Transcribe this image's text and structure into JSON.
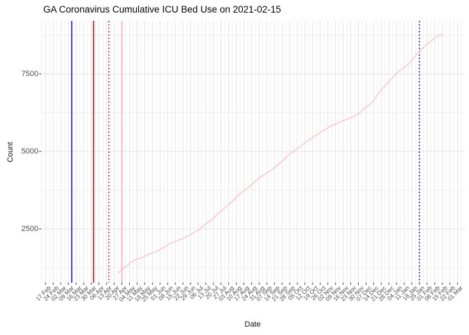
{
  "title": "GA Coronavirus Cumulative ICU Bed Use on 2021-02-15",
  "colors": {
    "background": "#ffffff",
    "grid_major": "#e3e3e3",
    "grid_minor": "#f0f0f0",
    "axis_text": "#4d4d4d",
    "tick_mark": "#333333",
    "series_line": "#ffb6c1",
    "vline_blue": "#2323cc",
    "vline_red": "#dd2424",
    "vline_pink": "#ffaec0",
    "vline_pink_light": "#ffd3dd"
  },
  "chart_data": {
    "type": "line",
    "title": "GA Coronavirus Cumulative ICU Bed Use on 2021-02-15",
    "xlabel": "Date",
    "ylabel": "Count",
    "legend": "none",
    "grid": "on",
    "xlim": [
      "2020-02-13",
      "2021-03-07"
    ],
    "ylim": [
      766,
      9212
    ],
    "y_ticks": [
      2500,
      5000,
      7500
    ],
    "y_minor_ticks": [
      1250,
      3750,
      6250,
      8750
    ],
    "x_ticks": [
      {
        "date": "2020-02-17",
        "label": "17 Feb"
      },
      {
        "date": "2020-02-24",
        "label": "24 Feb"
      },
      {
        "date": "2020-03-02",
        "label": "02 Mar"
      },
      {
        "date": "2020-03-09",
        "label": "09 Mar"
      },
      {
        "date": "2020-03-16",
        "label": "16 Mar"
      },
      {
        "date": "2020-03-23",
        "label": "23 Mar"
      },
      {
        "date": "2020-03-30",
        "label": "30 Mar"
      },
      {
        "date": "2020-04-06",
        "label": "06 Apr"
      },
      {
        "date": "2020-04-13",
        "label": "13 Apr"
      },
      {
        "date": "2020-04-20",
        "label": "20 Apr"
      },
      {
        "date": "2020-04-27",
        "label": "27 Apr"
      },
      {
        "date": "2020-05-04",
        "label": "04 May"
      },
      {
        "date": "2020-05-11",
        "label": "11 May"
      },
      {
        "date": "2020-05-18",
        "label": "18 May"
      },
      {
        "date": "2020-05-25",
        "label": "25 May"
      },
      {
        "date": "2020-06-01",
        "label": "01 Jun"
      },
      {
        "date": "2020-06-08",
        "label": "08 Jun"
      },
      {
        "date": "2020-06-15",
        "label": "15 Jun"
      },
      {
        "date": "2020-06-22",
        "label": "22 Jun"
      },
      {
        "date": "2020-06-29",
        "label": "29 Jun"
      },
      {
        "date": "2020-07-06",
        "label": "06 Jul"
      },
      {
        "date": "2020-07-13",
        "label": "13 Jul"
      },
      {
        "date": "2020-07-20",
        "label": "20 Jul"
      },
      {
        "date": "2020-07-27",
        "label": "27 Jul"
      },
      {
        "date": "2020-08-03",
        "label": "03 Aug"
      },
      {
        "date": "2020-08-10",
        "label": "10 Aug"
      },
      {
        "date": "2020-08-17",
        "label": "17 Aug"
      },
      {
        "date": "2020-08-24",
        "label": "24 Aug"
      },
      {
        "date": "2020-08-31",
        "label": "31 Aug"
      },
      {
        "date": "2020-09-07",
        "label": "07 Sep"
      },
      {
        "date": "2020-09-14",
        "label": "14 Sep"
      },
      {
        "date": "2020-09-21",
        "label": "21 Sep"
      },
      {
        "date": "2020-09-28",
        "label": "28 Sep"
      },
      {
        "date": "2020-10-05",
        "label": "05 Oct"
      },
      {
        "date": "2020-10-12",
        "label": "12 Oct"
      },
      {
        "date": "2020-10-19",
        "label": "19 Oct"
      },
      {
        "date": "2020-10-26",
        "label": "26 Oct"
      },
      {
        "date": "2020-11-02",
        "label": "02 Nov"
      },
      {
        "date": "2020-11-09",
        "label": "09 Nov"
      },
      {
        "date": "2020-11-16",
        "label": "16 Nov"
      },
      {
        "date": "2020-11-23",
        "label": "23 Nov"
      },
      {
        "date": "2020-11-30",
        "label": "30 Nov"
      },
      {
        "date": "2020-12-07",
        "label": "07 Dec"
      },
      {
        "date": "2020-12-14",
        "label": "14 Dec"
      },
      {
        "date": "2020-12-21",
        "label": "21 Dec"
      },
      {
        "date": "2020-12-28",
        "label": "28 Dec"
      },
      {
        "date": "2021-01-04",
        "label": "04 Jan"
      },
      {
        "date": "2021-01-11",
        "label": "11 Jan"
      },
      {
        "date": "2021-01-18",
        "label": "18 Jan"
      },
      {
        "date": "2021-01-25",
        "label": "25 Jan"
      },
      {
        "date": "2021-02-01",
        "label": "01 Feb"
      },
      {
        "date": "2021-02-08",
        "label": "08 Feb"
      },
      {
        "date": "2021-02-15",
        "label": "15 Feb"
      },
      {
        "date": "2021-02-22",
        "label": "22 Feb"
      },
      {
        "date": "2021-03-01",
        "label": "01 Mar"
      }
    ],
    "vlines": [
      {
        "date": "2020-03-12",
        "color": "#2323cc",
        "style": "solid"
      },
      {
        "date": "2020-04-01",
        "color": "#dd2424",
        "style": "solid"
      },
      {
        "date": "2020-04-15",
        "color": "#dd2424",
        "style": "dotted"
      },
      {
        "date": "2020-04-27",
        "color": "#ffaec0",
        "style": "solid"
      },
      {
        "date": "2020-05-11",
        "color": "#ffd3dd",
        "style": "dotted"
      },
      {
        "date": "2021-01-25",
        "color": "#2323cc",
        "style": "dotted"
      }
    ],
    "series": [
      {
        "name": "cumulative-icu-beds",
        "color": "#ffb6c1",
        "points": [
          [
            "2020-04-24",
            1080
          ],
          [
            "2020-04-27",
            1190
          ],
          [
            "2020-05-03",
            1350
          ],
          [
            "2020-05-09",
            1510
          ],
          [
            "2020-05-16",
            1580
          ],
          [
            "2020-05-22",
            1690
          ],
          [
            "2020-05-29",
            1780
          ],
          [
            "2020-06-04",
            1890
          ],
          [
            "2020-06-10",
            2030
          ],
          [
            "2020-06-17",
            2120
          ],
          [
            "2020-06-23",
            2210
          ],
          [
            "2020-06-29",
            2320
          ],
          [
            "2020-07-06",
            2460
          ],
          [
            "2020-07-12",
            2640
          ],
          [
            "2020-07-19",
            2820
          ],
          [
            "2020-07-25",
            3020
          ],
          [
            "2020-08-01",
            3220
          ],
          [
            "2020-08-07",
            3420
          ],
          [
            "2020-08-13",
            3630
          ],
          [
            "2020-08-20",
            3810
          ],
          [
            "2020-08-26",
            3990
          ],
          [
            "2020-09-01",
            4170
          ],
          [
            "2020-09-08",
            4320
          ],
          [
            "2020-09-14",
            4480
          ],
          [
            "2020-09-21",
            4680
          ],
          [
            "2020-09-27",
            4890
          ],
          [
            "2020-10-04",
            5070
          ],
          [
            "2020-10-10",
            5230
          ],
          [
            "2020-10-16",
            5380
          ],
          [
            "2020-10-23",
            5540
          ],
          [
            "2020-10-29",
            5680
          ],
          [
            "2020-11-04",
            5810
          ],
          [
            "2020-11-11",
            5920
          ],
          [
            "2020-11-17",
            6010
          ],
          [
            "2020-11-24",
            6100
          ],
          [
            "2020-11-30",
            6220
          ],
          [
            "2020-12-06",
            6400
          ],
          [
            "2020-12-13",
            6600
          ],
          [
            "2020-12-19",
            6910
          ],
          [
            "2020-12-26",
            7180
          ],
          [
            "2021-01-01",
            7410
          ],
          [
            "2021-01-07",
            7610
          ],
          [
            "2021-01-14",
            7790
          ],
          [
            "2021-01-20",
            8020
          ],
          [
            "2021-01-26",
            8270
          ],
          [
            "2021-02-01",
            8470
          ],
          [
            "2021-02-08",
            8650
          ],
          [
            "2021-02-12",
            8760
          ],
          [
            "2021-02-15",
            8780
          ]
        ]
      }
    ]
  }
}
